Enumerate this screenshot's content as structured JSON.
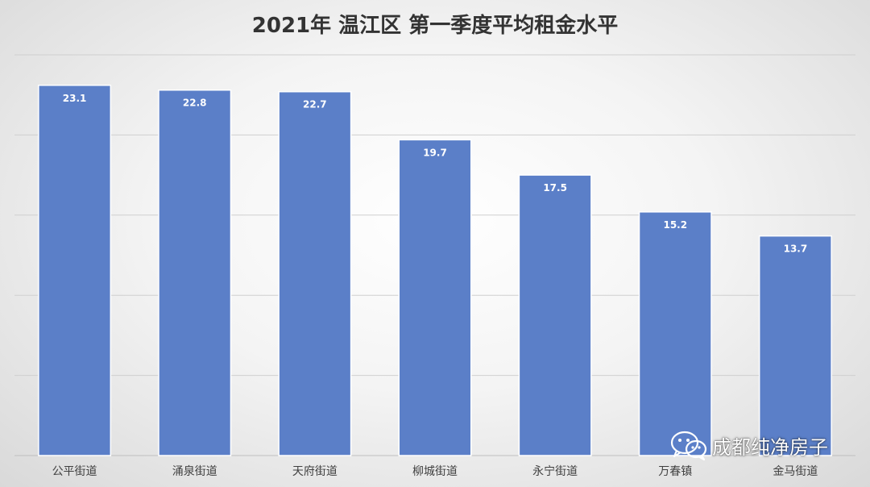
{
  "chart_data": {
    "type": "bar",
    "title": "2021年 温江区 第一季度平均租金水平",
    "categories": [
      "公平街道",
      "涌泉街道",
      "天府街道",
      "柳城街道",
      "永宁街道",
      "万春镇",
      "金马街道"
    ],
    "values": [
      23.1,
      22.8,
      22.7,
      19.7,
      17.5,
      15.2,
      13.7
    ],
    "data_labels": [
      "23.1",
      "22.8",
      "22.7",
      "19.7",
      "17.5",
      "15.2",
      "13.7"
    ],
    "xlabel": "",
    "ylabel": "",
    "ylim": [
      0,
      25
    ],
    "gridlines": [
      5,
      10,
      15,
      20,
      25
    ],
    "grid": true,
    "legend": "none",
    "bar_color": "#5b7fc8",
    "bar_edge_color": "#ffffff"
  },
  "watermark": {
    "text": "成都纯净房子",
    "icon": "wechat-icon"
  }
}
